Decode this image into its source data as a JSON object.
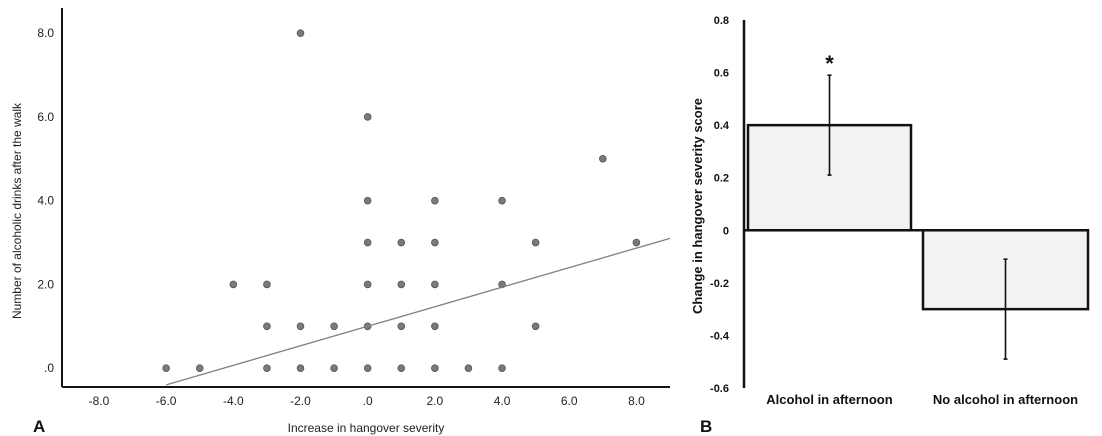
{
  "chart_data": [
    {
      "type": "scatter",
      "panel_label": "A",
      "xlabel": "Increase in hangover severity",
      "ylabel": "Number of alcoholic drinks after the walk",
      "xlim": [
        -9.1,
        9.0
      ],
      "ylim": [
        -0.45,
        8.6
      ],
      "xticks": [
        -8,
        -6,
        -4,
        -2,
        0,
        2,
        4,
        6,
        8
      ],
      "xtick_labels": [
        "-8.0",
        "-6.0",
        "-4.0",
        "-2.0",
        ".0",
        "2.0",
        "4.0",
        "6.0",
        "8.0"
      ],
      "yticks": [
        0,
        2,
        4,
        6,
        8
      ],
      "ytick_labels": [
        ".0",
        "2.0",
        "4.0",
        "6.0",
        "8.0"
      ],
      "grid": false,
      "points": [
        [
          -6,
          0
        ],
        [
          -5,
          0
        ],
        [
          -4,
          2
        ],
        [
          -3,
          2
        ],
        [
          -3,
          1
        ],
        [
          -3,
          0
        ],
        [
          -2,
          8
        ],
        [
          -2,
          1
        ],
        [
          -2,
          0
        ],
        [
          -1,
          1
        ],
        [
          -1,
          0
        ],
        [
          0,
          6
        ],
        [
          0,
          4
        ],
        [
          0,
          3
        ],
        [
          0,
          2
        ],
        [
          0,
          1
        ],
        [
          0,
          0
        ],
        [
          1,
          3
        ],
        [
          1,
          2
        ],
        [
          1,
          1
        ],
        [
          1,
          0
        ],
        [
          2,
          4
        ],
        [
          2,
          3
        ],
        [
          2,
          2
        ],
        [
          2,
          1
        ],
        [
          2,
          0
        ],
        [
          3,
          0
        ],
        [
          4,
          4
        ],
        [
          4,
          2
        ],
        [
          4,
          0
        ],
        [
          5,
          3
        ],
        [
          5,
          1
        ],
        [
          7,
          5
        ],
        [
          8,
          3
        ]
      ],
      "fit_line": [
        [
          -6.0,
          -0.4
        ],
        [
          9.0,
          3.1
        ]
      ]
    },
    {
      "type": "bar",
      "panel_label": "B",
      "ylabel": "Change in hangover severity score",
      "categories": [
        "Alcohol in afternoon",
        "No alcohol in afternoon"
      ],
      "values": [
        0.4,
        -0.3
      ],
      "error_bars": [
        [
          0.21,
          0.59
        ],
        [
          -0.49,
          -0.11
        ]
      ],
      "annotations": [
        "*",
        ""
      ],
      "ylim": [
        -0.6,
        0.8
      ],
      "yticks": [
        -0.6,
        -0.4,
        -0.2,
        0,
        0.2,
        0.4,
        0.6,
        0.8
      ],
      "ytick_labels": [
        "-0.6",
        "-0.4",
        "-0.2",
        "0",
        "0.2",
        "0.4",
        "0.6",
        "0.8"
      ],
      "bar_fill": "#f2f2f2",
      "grid": false
    }
  ],
  "colors": {
    "points": "#7a7a7a",
    "point_stroke": "#555555",
    "fit_line": "#808080",
    "axis": "#111111"
  }
}
